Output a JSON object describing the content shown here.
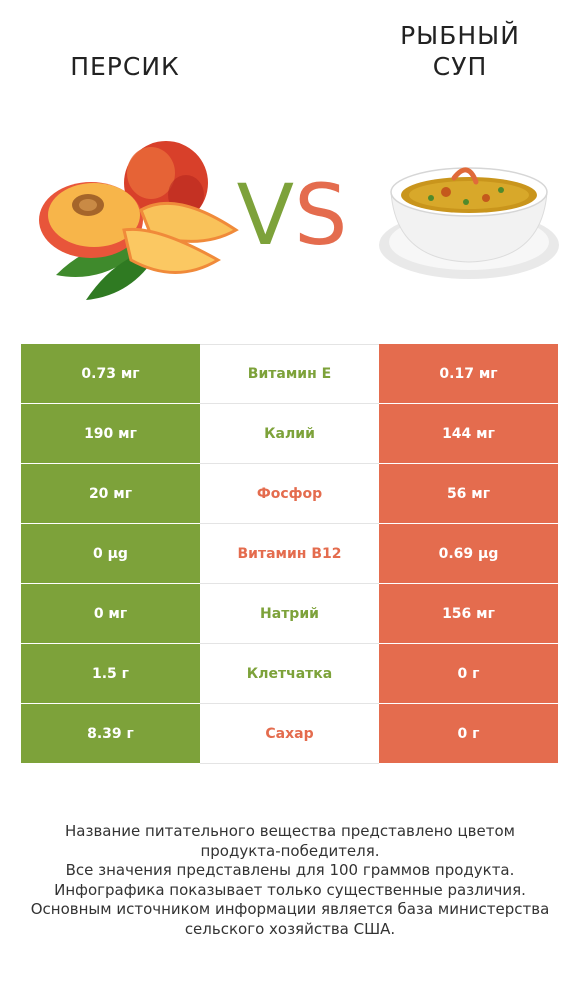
{
  "header": {
    "left_title": "ПЕРСИК",
    "right_title_line1": "РЫБНЫЙ",
    "right_title_line2": "СУП",
    "vs_v": "V",
    "vs_s": "S"
  },
  "colors": {
    "left_winner": "#7da23a",
    "right_winner": "#e46c4e"
  },
  "images": {
    "left": "peach-image",
    "right": "fish-soup-image"
  },
  "rows": [
    {
      "left": "0.73 мг",
      "nutrient": "Витамин E",
      "right": "0.17 мг",
      "winner": "left"
    },
    {
      "left": "190 мг",
      "nutrient": "Калий",
      "right": "144 мг",
      "winner": "left"
    },
    {
      "left": "20 мг",
      "nutrient": "Фосфор",
      "right": "56 мг",
      "winner": "right"
    },
    {
      "left": "0 µg",
      "nutrient": "Витамин B12",
      "right": "0.69 µg",
      "winner": "right"
    },
    {
      "left": "0 мг",
      "nutrient": "Натрий",
      "right": "156 мг",
      "winner": "left"
    },
    {
      "left": "1.5 г",
      "nutrient": "Клетчатка",
      "right": "0 г",
      "winner": "left"
    },
    {
      "left": "8.39 г",
      "nutrient": "Сахар",
      "right": "0 г",
      "winner": "right"
    }
  ],
  "footnote": [
    "Название питательного вещества представлено цветом",
    "продукта-победителя.",
    "Все значения представлены для 100 граммов продукта.",
    "Инфографика показывает только существенные различия.",
    "Основным источником информации является база министерства",
    "сельского хозяйства США."
  ]
}
